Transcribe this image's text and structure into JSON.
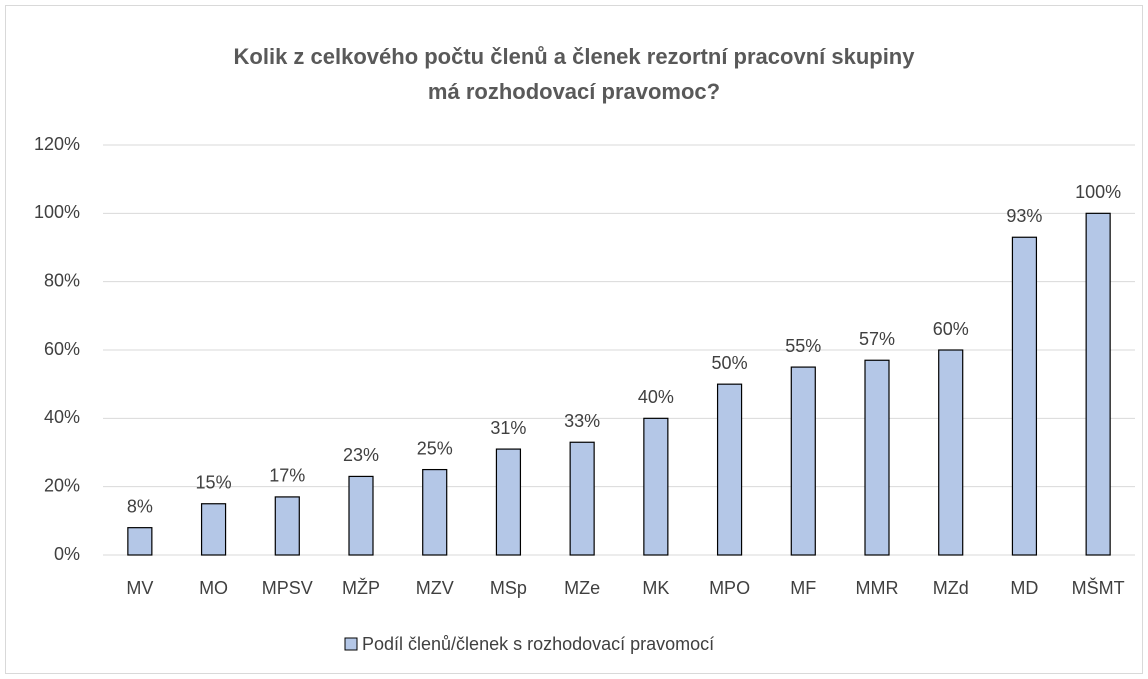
{
  "chart_data": {
    "type": "bar",
    "title": [
      "Kolik z celkového počtu členů a členek rezortní pracovní skupiny",
      "má rozhodovací pravomoc?"
    ],
    "categories": [
      "MV",
      "MO",
      "MPSV",
      "MŽP",
      "MZV",
      "MSp",
      "MZe",
      "MK",
      "MPO",
      "MF",
      "MMR",
      "MZd",
      "MD",
      "MŠMT"
    ],
    "series": [
      {
        "name": "Podíl členů/členek s rozhodovací pravomocí",
        "color": "#b4c7e7",
        "values": [
          8,
          15,
          17,
          23,
          25,
          31,
          33,
          40,
          50,
          55,
          57,
          60,
          93,
          100
        ],
        "value_labels": [
          "8%",
          "15%",
          "17%",
          "23%",
          "25%",
          "31%",
          "33%",
          "40%",
          "50%",
          "55%",
          "57%",
          "60%",
          "93%",
          "100%"
        ]
      }
    ],
    "ylim": [
      0,
      120
    ],
    "yticks": [
      {
        "value": 0,
        "label": "0%"
      },
      {
        "value": 20,
        "label": "20%"
      },
      {
        "value": 40,
        "label": "40%"
      },
      {
        "value": 60,
        "label": "60%"
      },
      {
        "value": 80,
        "label": "80%"
      },
      {
        "value": 100,
        "label": "100%"
      },
      {
        "value": 120,
        "label": "120%"
      }
    ],
    "grid": true,
    "legend": "bottom"
  }
}
